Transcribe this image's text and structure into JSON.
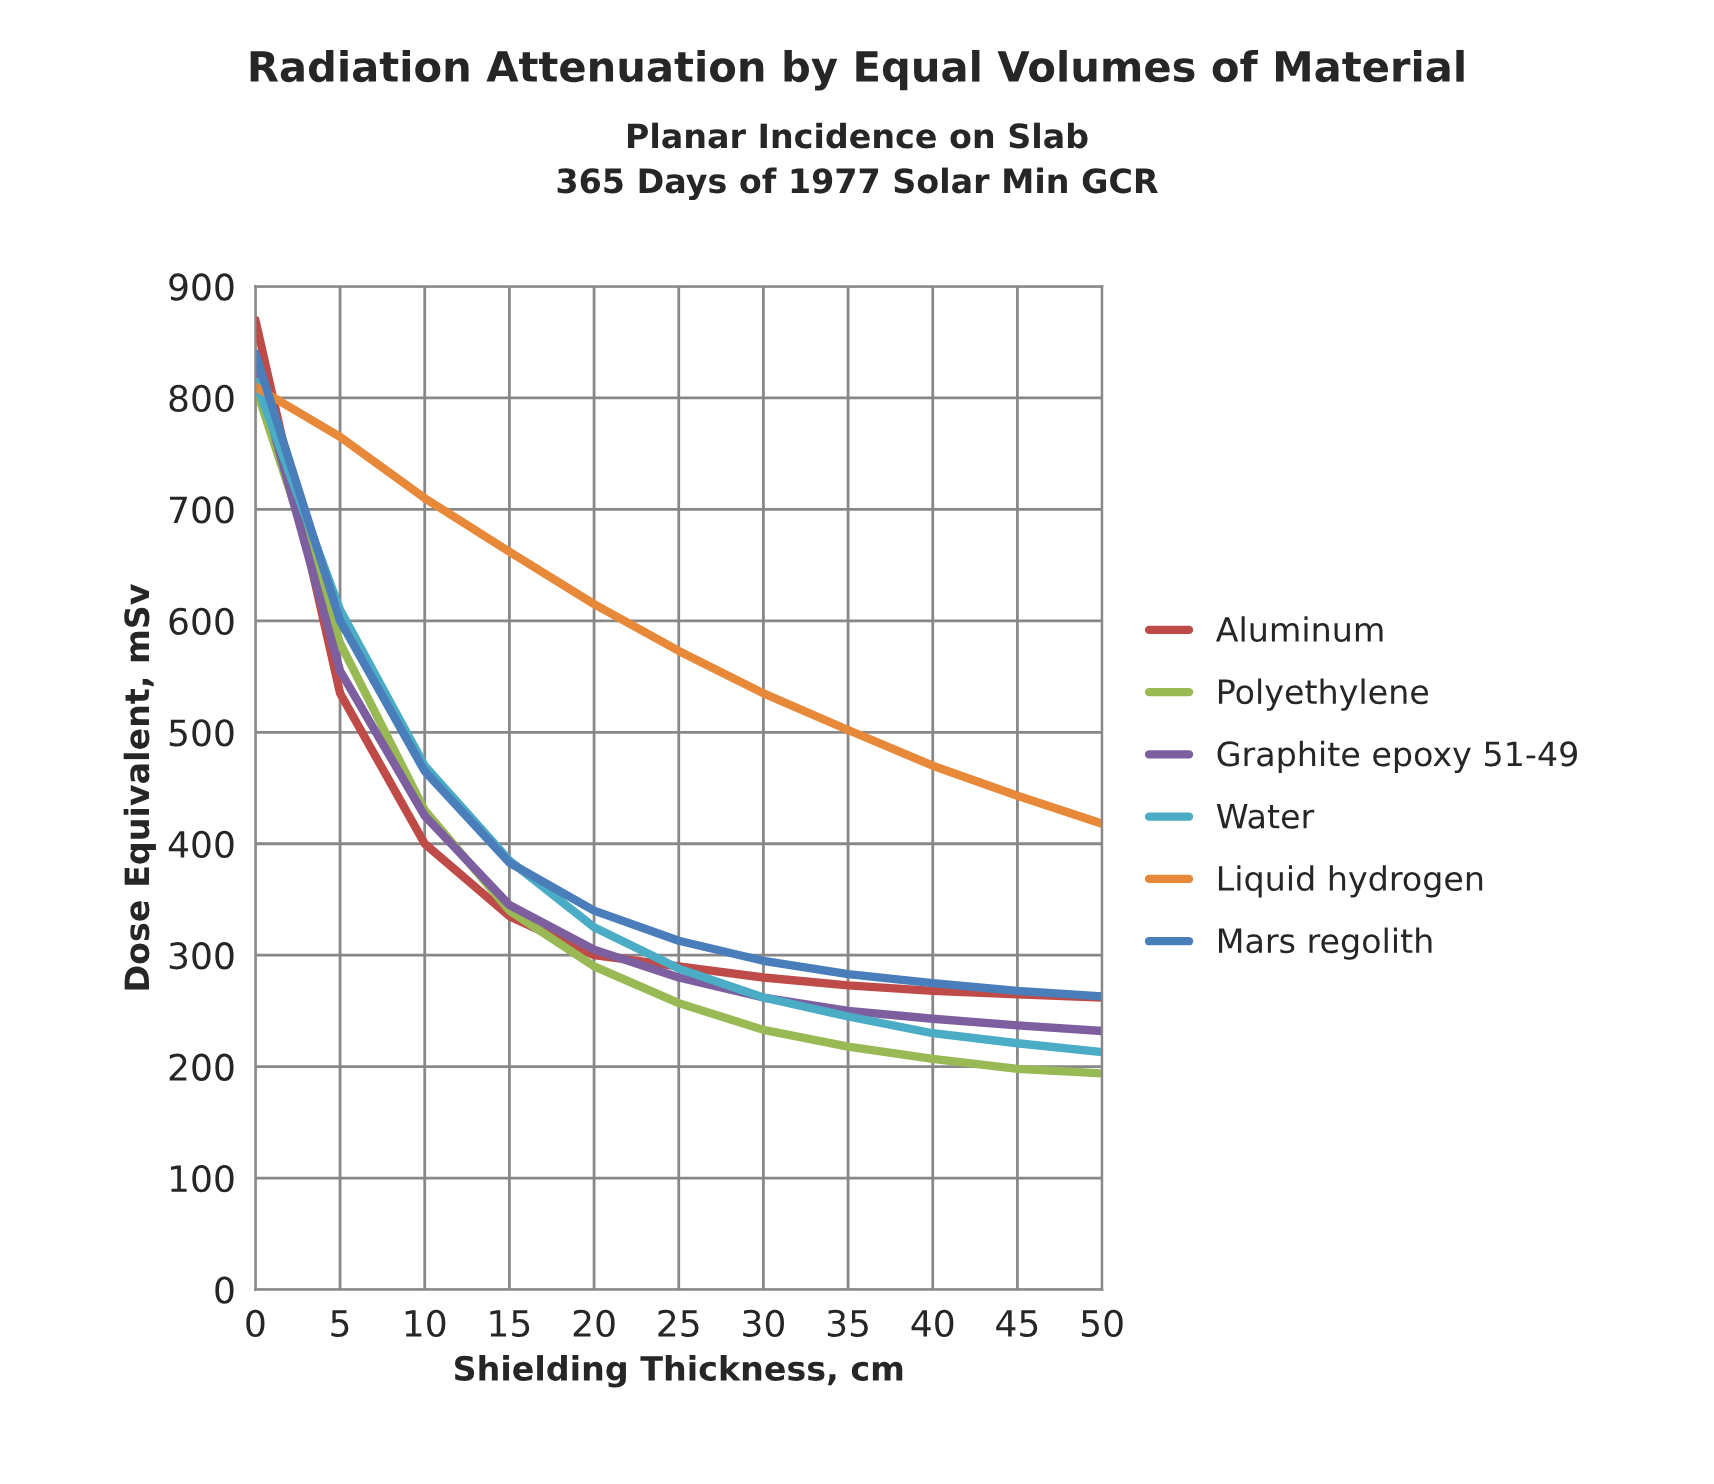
{
  "chart_data": {
    "type": "line",
    "title": "Radiation Attenuation by Equal Volumes of Material",
    "subtitle": "Planar Incidence on Slab\n365 Days of 1977 Solar Min GCR",
    "xlabel": "Shielding Thickness, cm",
    "ylabel": "Dose Equivalent, mSv",
    "x": [
      0,
      5,
      10,
      15,
      20,
      25,
      30,
      35,
      40,
      45,
      50
    ],
    "series": [
      {
        "name": "Aluminum",
        "color": "#be4b48",
        "values": [
          870,
          535,
          400,
          335,
          300,
          290,
          280,
          273,
          268,
          265,
          262
        ]
      },
      {
        "name": "Polyethylene",
        "color": "#98b954",
        "values": [
          810,
          580,
          430,
          340,
          290,
          257,
          233,
          218,
          207,
          198,
          194
        ]
      },
      {
        "name": "Graphite epoxy 51-49",
        "color": "#7d5fa0",
        "values": [
          830,
          555,
          425,
          345,
          305,
          280,
          262,
          250,
          243,
          237,
          232
        ]
      },
      {
        "name": "Water",
        "color": "#4bacc6",
        "values": [
          815,
          610,
          470,
          385,
          325,
          288,
          262,
          245,
          230,
          221,
          213
        ]
      },
      {
        "name": "Liquid hydrogen",
        "color": "#e8893a",
        "values": [
          810,
          765,
          710,
          662,
          615,
          573,
          535,
          502,
          470,
          443,
          418
        ]
      },
      {
        "name": "Mars regolith",
        "color": "#4a7ebb",
        "values": [
          840,
          600,
          465,
          383,
          340,
          313,
          295,
          283,
          275,
          268,
          263
        ]
      }
    ],
    "xlim": [
      0,
      50
    ],
    "xticks": [
      0,
      5,
      10,
      15,
      20,
      25,
      30,
      35,
      40,
      45,
      50
    ],
    "ylim": [
      0,
      900
    ],
    "yticks": [
      0,
      100,
      200,
      300,
      400,
      500,
      600,
      700,
      800,
      900
    ],
    "grid": true,
    "legend": "right",
    "marker": "none",
    "line_style": "solid"
  }
}
